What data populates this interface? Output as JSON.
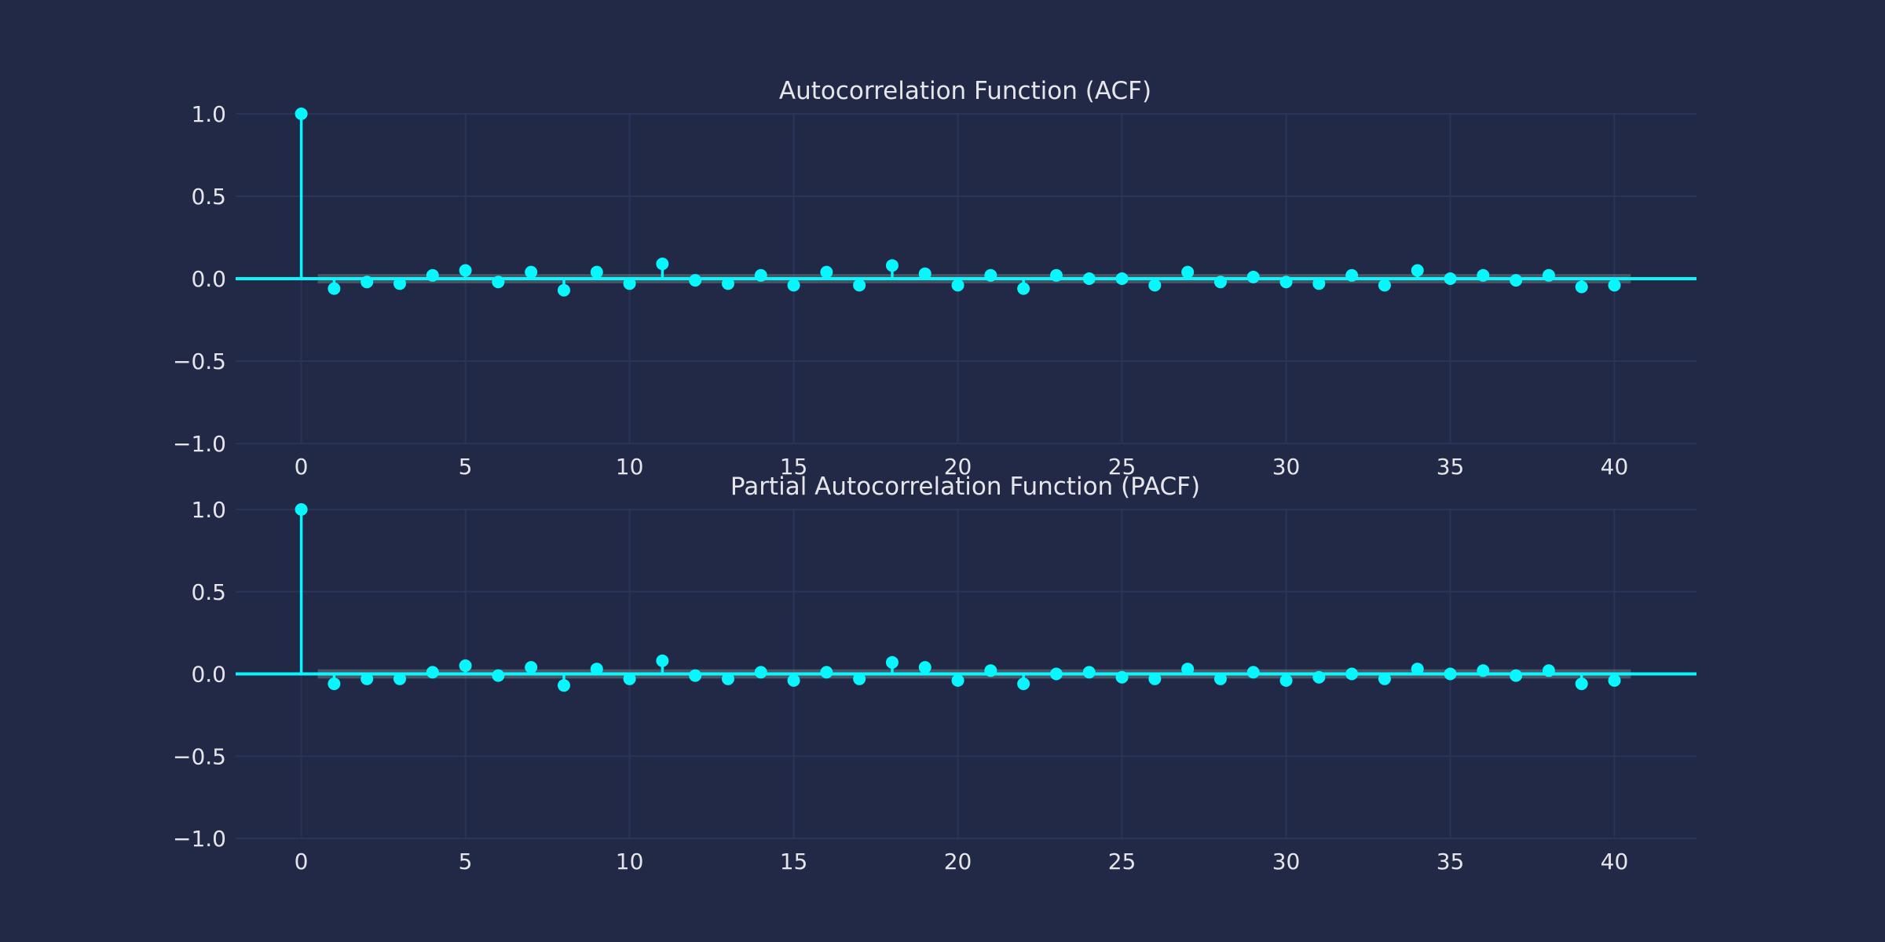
{
  "colors": {
    "background": "#212946",
    "grid": "#2a3459",
    "stem": "#08f7fe",
    "band": "#7a8a8c",
    "text": "#e6e6ea"
  },
  "chart_data": [
    {
      "type": "stem",
      "title": "Autocorrelation Function (ACF)",
      "xlabel": "",
      "ylabel": "",
      "xlim": [
        -2,
        42.5
      ],
      "ylim": [
        -1.0,
        1.0
      ],
      "xticks": [
        0,
        5,
        10,
        15,
        20,
        25,
        30,
        35,
        40
      ],
      "yticks": [
        -1.0,
        -0.5,
        0.0,
        0.5,
        1.0
      ],
      "grid": true,
      "lags": [
        0,
        1,
        2,
        3,
        4,
        5,
        6,
        7,
        8,
        9,
        10,
        11,
        12,
        13,
        14,
        15,
        16,
        17,
        18,
        19,
        20,
        21,
        22,
        23,
        24,
        25,
        26,
        27,
        28,
        29,
        30,
        31,
        32,
        33,
        34,
        35,
        36,
        37,
        38,
        39,
        40
      ],
      "values": [
        1.0,
        -0.06,
        -0.02,
        -0.03,
        0.02,
        0.05,
        -0.02,
        0.04,
        -0.07,
        0.04,
        -0.03,
        0.09,
        -0.01,
        -0.03,
        0.02,
        -0.04,
        0.04,
        -0.04,
        0.08,
        0.03,
        -0.04,
        0.02,
        -0.06,
        0.02,
        0.0,
        0.0,
        -0.04,
        0.04,
        -0.02,
        0.01,
        -0.02,
        -0.03,
        0.02,
        -0.04,
        0.05,
        0.0,
        0.02,
        -0.01,
        0.02,
        -0.05,
        -0.04
      ],
      "confidence_band": 0.028
    },
    {
      "type": "stem",
      "title": "Partial Autocorrelation Function (PACF)",
      "xlabel": "",
      "ylabel": "",
      "xlim": [
        -2,
        42.5
      ],
      "ylim": [
        -1.0,
        1.0
      ],
      "xticks": [
        0,
        5,
        10,
        15,
        20,
        25,
        30,
        35,
        40
      ],
      "yticks": [
        -1.0,
        -0.5,
        0.0,
        0.5,
        1.0
      ],
      "grid": true,
      "lags": [
        0,
        1,
        2,
        3,
        4,
        5,
        6,
        7,
        8,
        9,
        10,
        11,
        12,
        13,
        14,
        15,
        16,
        17,
        18,
        19,
        20,
        21,
        22,
        23,
        24,
        25,
        26,
        27,
        28,
        29,
        30,
        31,
        32,
        33,
        34,
        35,
        36,
        37,
        38,
        39,
        40
      ],
      "values": [
        1.0,
        -0.06,
        -0.03,
        -0.03,
        0.01,
        0.05,
        -0.01,
        0.04,
        -0.07,
        0.03,
        -0.03,
        0.08,
        -0.01,
        -0.03,
        0.01,
        -0.04,
        0.01,
        -0.03,
        0.07,
        0.04,
        -0.04,
        0.02,
        -0.06,
        0.0,
        0.01,
        -0.02,
        -0.03,
        0.03,
        -0.03,
        0.01,
        -0.04,
        -0.02,
        0.0,
        -0.03,
        0.03,
        0.0,
        0.02,
        -0.01,
        0.02,
        -0.06,
        -0.04
      ],
      "confidence_band": 0.028
    }
  ]
}
